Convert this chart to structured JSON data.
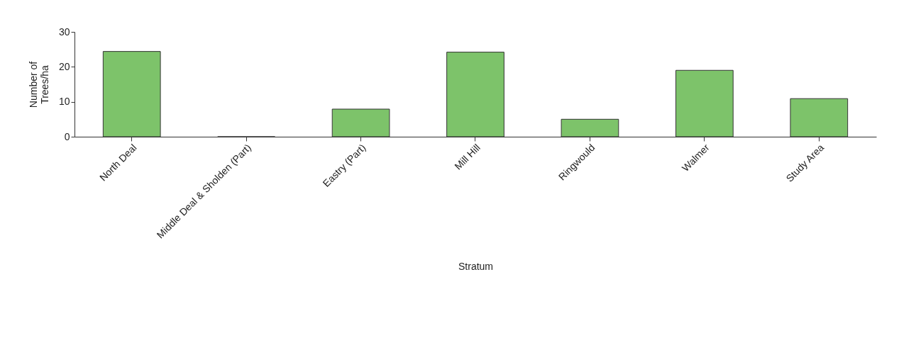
{
  "chart_data": {
    "type": "bar",
    "xlabel": "Stratum",
    "ylabel": "Number of Trees/ha",
    "categories": [
      "North Deal",
      "Middle Deal & Sholden (Part)",
      "Eastry (Part)",
      "Mill Hill",
      "Ringwould",
      "Walmer",
      "Study Area"
    ],
    "values": [
      24.4,
      0,
      7.9,
      24.2,
      5.0,
      19.0,
      10.9
    ],
    "color": "#7dc36a",
    "ylim": [
      0,
      30
    ],
    "yticks": [
      0,
      10,
      20,
      30
    ],
    "grid": false
  }
}
